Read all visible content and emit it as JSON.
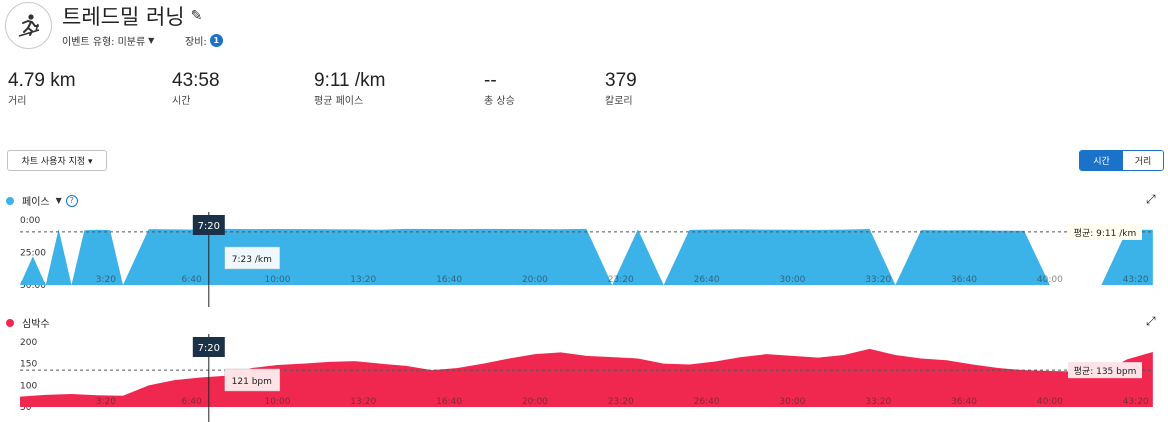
{
  "activity": {
    "icon": "treadmill-runner-icon",
    "title": "트레드밀 러닝",
    "event_type_label": "이벤트 유형:",
    "event_type_value": "미분류",
    "gear_label": "장비:",
    "gear_count": "1"
  },
  "stats": [
    {
      "value": "4.79 km",
      "label": "거리"
    },
    {
      "value": "43:58",
      "label": "시간"
    },
    {
      "value": "9:11 /km",
      "label": "평균 페이스"
    },
    {
      "value": "--",
      "label": "총 상승"
    },
    {
      "value": "379",
      "label": "칼로리"
    }
  ],
  "controls": {
    "customize_label": "차트 사용자 지정 ▾",
    "toggle_time": "시간",
    "toggle_distance": "거리"
  },
  "colors": {
    "pace": "#3bb2e8",
    "heart": "#f0284f",
    "accent": "#1a73c9",
    "cursor_label_bg": "#1b3148"
  },
  "chart_data": [
    {
      "type": "area",
      "series_label": "페이스",
      "y_tick_labels": [
        "0:00",
        "25:00",
        "50:00"
      ],
      "ylim": [
        "0:00",
        "50:00"
      ],
      "y_axis_reversed": true,
      "x_tick_labels": [
        "3:20",
        "6:40",
        "10:00",
        "13:20",
        "16:40",
        "20:00",
        "23:20",
        "26:40",
        "30:00",
        "33:20",
        "36:40",
        "40:00",
        "43:20"
      ],
      "cursor_time": "7:20",
      "cursor_value": "7:23 /km",
      "average_label": "평균: 9:11 /km",
      "average_value_min": 9.18,
      "series": [
        {
          "x_min": [
            0,
            0.5,
            1,
            1.5,
            2,
            2.5,
            3,
            3.5,
            4,
            5,
            6,
            7,
            8,
            9,
            10,
            11,
            12,
            13,
            14,
            15,
            16,
            17,
            18,
            19,
            20,
            21,
            22,
            23,
            24,
            25,
            26,
            27,
            28,
            29,
            30,
            31,
            32,
            33,
            34,
            35,
            36,
            37,
            38,
            39,
            40,
            41,
            42,
            43,
            44
          ],
          "y_min_per_km": [
            50,
            28,
            50,
            7,
            50,
            8,
            7.5,
            7.8,
            50,
            7,
            7.2,
            7.4,
            6.8,
            7,
            6.9,
            7,
            7.1,
            7.2,
            7.5,
            6.8,
            6.9,
            7,
            6.8,
            6.9,
            7,
            7.1,
            6.8,
            50,
            7.2,
            50,
            7.6,
            7.3,
            7.2,
            7.4,
            7.5,
            7.6,
            7.4,
            6.9,
            50,
            7.8,
            8,
            7.9,
            8.2,
            8.3,
            50,
            50,
            50,
            7.5,
            7.5
          ]
        }
      ]
    },
    {
      "type": "area",
      "series_label": "심박수",
      "y_tick_labels": [
        "200",
        "150",
        "100",
        "50"
      ],
      "ylim": [
        50,
        200
      ],
      "x_tick_labels": [
        "3:20",
        "6:40",
        "10:00",
        "13:20",
        "16:40",
        "20:00",
        "23:20",
        "26:40",
        "30:00",
        "33:20",
        "36:40",
        "40:00",
        "43:20"
      ],
      "cursor_time": "7:20",
      "cursor_value": "121 bpm",
      "average_label": "평균: 135 bpm",
      "average_value_bpm": 135,
      "series": [
        {
          "x_min": [
            0,
            1,
            2,
            3,
            4,
            5,
            6,
            7,
            8,
            9,
            10,
            11,
            12,
            13,
            14,
            15,
            16,
            17,
            18,
            19,
            20,
            21,
            22,
            23,
            24,
            25,
            26,
            27,
            28,
            29,
            30,
            31,
            32,
            33,
            34,
            35,
            36,
            37,
            38,
            39,
            40,
            41,
            42,
            43,
            44
          ],
          "bpm": [
            74,
            78,
            80,
            77,
            76,
            100,
            112,
            118,
            122,
            140,
            147,
            150,
            154,
            156,
            150,
            145,
            135,
            140,
            150,
            162,
            172,
            176,
            168,
            165,
            162,
            150,
            148,
            155,
            165,
            172,
            168,
            164,
            170,
            184,
            170,
            162,
            158,
            148,
            140,
            135,
            133,
            132,
            128,
            160,
            177
          ]
        }
      ]
    }
  ]
}
